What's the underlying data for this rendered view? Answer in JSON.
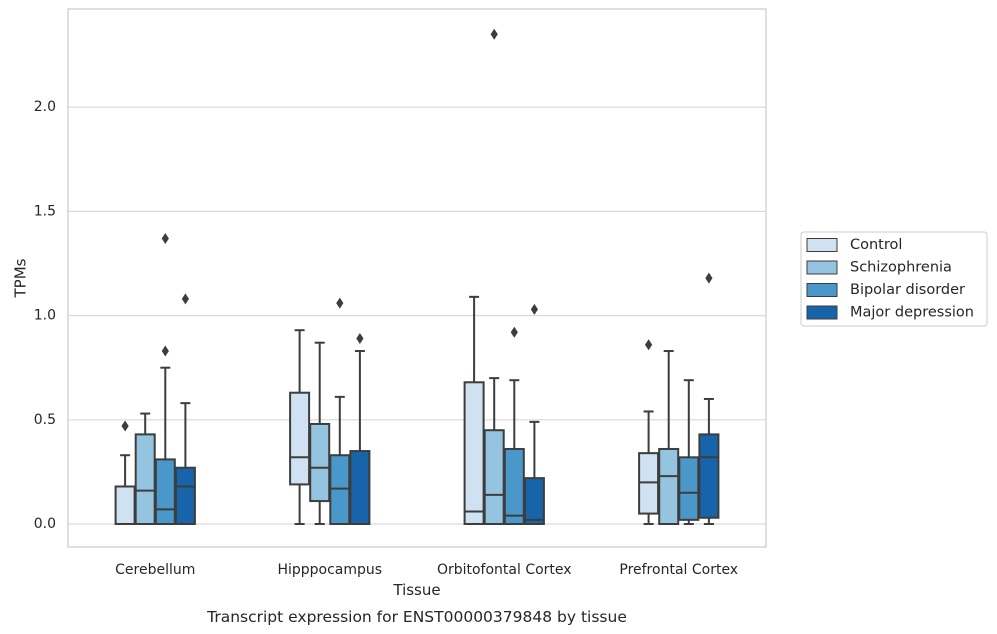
{
  "chart_data": {
    "type": "box",
    "caption": "Transcript expression for ENST00000379848 by tissue",
    "xlabel": "Tissue",
    "ylabel": "TPMs",
    "ylim": [
      -0.115,
      2.47
    ],
    "yticks": [
      0.0,
      0.5,
      1.0,
      1.5,
      2.0
    ],
    "ytick_labels": [
      "0.0",
      "0.5",
      "1.0",
      "1.5",
      "2.0"
    ],
    "grid": "horizontal",
    "legend_position": "right",
    "categories": [
      "Cerebellum",
      "Hipppocampus",
      "Orbitofontal Cortex",
      "Prefrontal Cortex"
    ],
    "series": [
      {
        "name": "Control",
        "color": "#d0e1f2",
        "boxes": [
          {
            "q1": 0.0,
            "median": 0.0,
            "q3": 0.18,
            "whisker_low": 0.0,
            "whisker_high": 0.33,
            "outliers": [
              0.47
            ]
          },
          {
            "q1": 0.19,
            "median": 0.32,
            "q3": 0.63,
            "whisker_low": 0.0,
            "whisker_high": 0.93,
            "outliers": []
          },
          {
            "q1": 0.0,
            "median": 0.06,
            "q3": 0.68,
            "whisker_low": 0.0,
            "whisker_high": 1.09,
            "outliers": []
          },
          {
            "q1": 0.05,
            "median": 0.2,
            "q3": 0.34,
            "whisker_low": 0.0,
            "whisker_high": 0.54,
            "outliers": [
              0.86
            ]
          }
        ]
      },
      {
        "name": "Schizophrenia",
        "color": "#94c4df",
        "boxes": [
          {
            "q1": 0.0,
            "median": 0.16,
            "q3": 0.43,
            "whisker_low": 0.0,
            "whisker_high": 0.53,
            "outliers": []
          },
          {
            "q1": 0.11,
            "median": 0.27,
            "q3": 0.48,
            "whisker_low": 0.0,
            "whisker_high": 0.87,
            "outliers": []
          },
          {
            "q1": 0.0,
            "median": 0.14,
            "q3": 0.45,
            "whisker_low": 0.0,
            "whisker_high": 0.7,
            "outliers": [
              2.35
            ]
          },
          {
            "q1": 0.0,
            "median": 0.23,
            "q3": 0.36,
            "whisker_low": 0.0,
            "whisker_high": 0.83,
            "outliers": []
          }
        ]
      },
      {
        "name": "Bipolar disorder",
        "color": "#4a98c9",
        "boxes": [
          {
            "q1": 0.0,
            "median": 0.07,
            "q3": 0.31,
            "whisker_low": 0.0,
            "whisker_high": 0.75,
            "outliers": [
              0.83,
              1.37
            ]
          },
          {
            "q1": 0.0,
            "median": 0.17,
            "q3": 0.33,
            "whisker_low": 0.0,
            "whisker_high": 0.61,
            "outliers": [
              1.06
            ]
          },
          {
            "q1": 0.0,
            "median": 0.04,
            "q3": 0.36,
            "whisker_low": 0.0,
            "whisker_high": 0.69,
            "outliers": [
              0.92
            ]
          },
          {
            "q1": 0.02,
            "median": 0.15,
            "q3": 0.32,
            "whisker_low": 0.0,
            "whisker_high": 0.69,
            "outliers": []
          }
        ]
      },
      {
        "name": "Major depression",
        "color": "#1764ab",
        "boxes": [
          {
            "q1": 0.0,
            "median": 0.18,
            "q3": 0.27,
            "whisker_low": 0.0,
            "whisker_high": 0.58,
            "outliers": [
              1.08
            ]
          },
          {
            "q1": 0.0,
            "median": 0.0,
            "q3": 0.35,
            "whisker_low": 0.0,
            "whisker_high": 0.83,
            "outliers": [
              0.89
            ]
          },
          {
            "q1": 0.0,
            "median": 0.02,
            "q3": 0.22,
            "whisker_low": 0.0,
            "whisker_high": 0.49,
            "outliers": [
              1.03
            ]
          },
          {
            "q1": 0.03,
            "median": 0.32,
            "q3": 0.43,
            "whisker_low": 0.0,
            "whisker_high": 0.6,
            "outliers": [
              1.18
            ]
          }
        ]
      }
    ]
  }
}
